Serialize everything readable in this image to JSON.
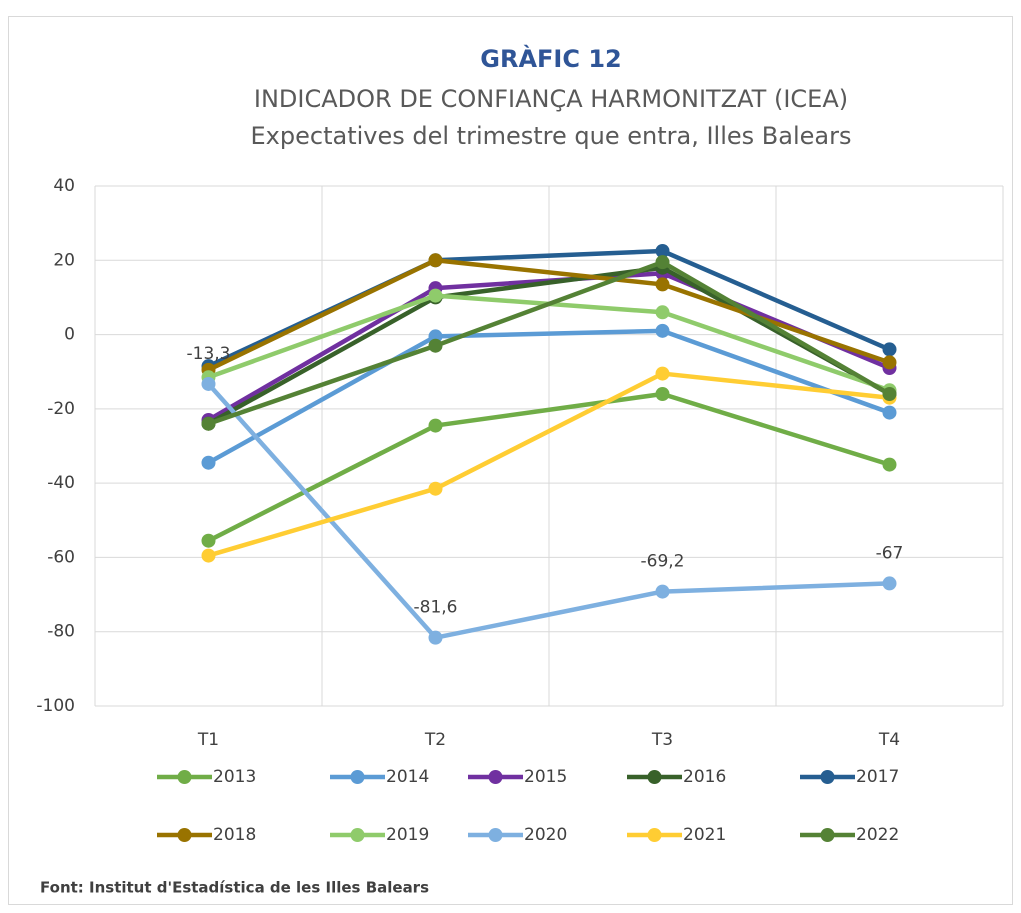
{
  "chart_data": {
    "type": "line",
    "title": "GRÀFIC 12",
    "subtitle": [
      "INDICADOR DE CONFIANÇA HARMONITZAT (ICEA)",
      "Expectatives del trimestre que entra, Illes Balears"
    ],
    "categories": [
      "T1",
      "T2",
      "T3",
      "T4"
    ],
    "series": [
      {
        "name": "2013",
        "color": "#70ad47",
        "values": [
          -55.5,
          -24.5,
          -16,
          -35
        ]
      },
      {
        "name": "2014",
        "color": "#5b9bd5",
        "values": [
          -34.5,
          -0.5,
          1,
          -21
        ]
      },
      {
        "name": "2015",
        "color": "#7030a0",
        "values": [
          -23,
          12.5,
          16.5,
          -9
        ]
      },
      {
        "name": "2016",
        "color": "#38612a",
        "values": [
          -24,
          10,
          18,
          -16
        ]
      },
      {
        "name": "2017",
        "color": "#255e91",
        "values": [
          -8.5,
          20,
          22.5,
          -4
        ]
      },
      {
        "name": "2018",
        "color": "#997300",
        "values": [
          -9.5,
          20,
          13.5,
          -7.5
        ]
      },
      {
        "name": "2019",
        "color": "#8fcb6b",
        "values": [
          -11.5,
          10.5,
          6,
          -15
        ]
      },
      {
        "name": "2020",
        "color": "#7eb0e0",
        "values": [
          -13.3,
          -81.6,
          -69.2,
          -67
        ],
        "value_labels": [
          "-13,3",
          "-81,6",
          "-69,2",
          "-67"
        ]
      },
      {
        "name": "2021",
        "color": "#ffcd33",
        "values": [
          -59.5,
          -41.5,
          -10.5,
          -17
        ]
      },
      {
        "name": "2022",
        "color": "#548235",
        "values": [
          -24,
          -3,
          19.5,
          -16
        ]
      }
    ],
    "ylim": [
      -100,
      40
    ],
    "yticks": [
      -100,
      -80,
      -60,
      -40,
      -20,
      0,
      20,
      40
    ],
    "grid": true,
    "source": "Font: Institut d'Estadística de les Illes Balears"
  }
}
